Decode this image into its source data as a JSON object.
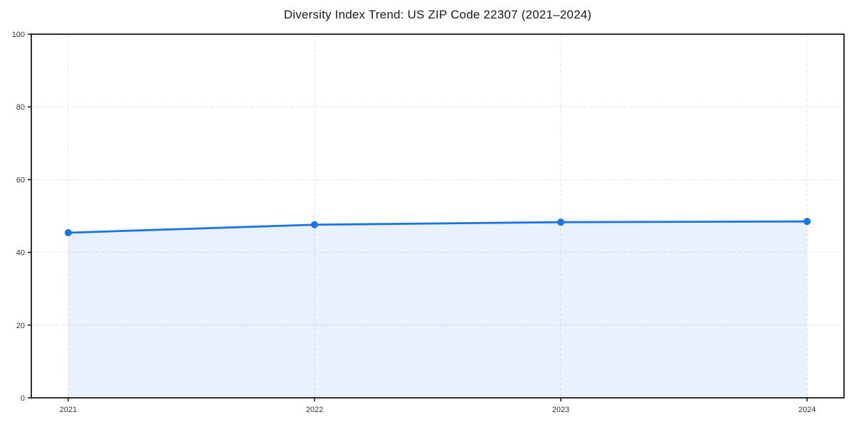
{
  "chart_data": {
    "type": "area",
    "title": "Diversity Index Trend: US ZIP Code 22307 (2021–2024)",
    "categories": [
      "2021",
      "2022",
      "2023",
      "2024"
    ],
    "series": [
      {
        "name": "Diversity Index",
        "values": [
          45.4,
          47.6,
          48.3,
          48.5
        ]
      }
    ],
    "xlabel": "",
    "ylabel": "",
    "ylim": [
      0,
      100
    ],
    "yticks": [
      0,
      20,
      40,
      60,
      80,
      100
    ],
    "grid": "dashed-both-axes",
    "legend": "none",
    "marker": "circle",
    "colors": {
      "line": "#1a73e8",
      "fill": "rgba(26,115,232,0.10)",
      "grid": "#e3e3e3",
      "axis": "#000000",
      "tick_label": "#333333",
      "title": "#1a1a1a",
      "background": "#ffffff"
    }
  }
}
